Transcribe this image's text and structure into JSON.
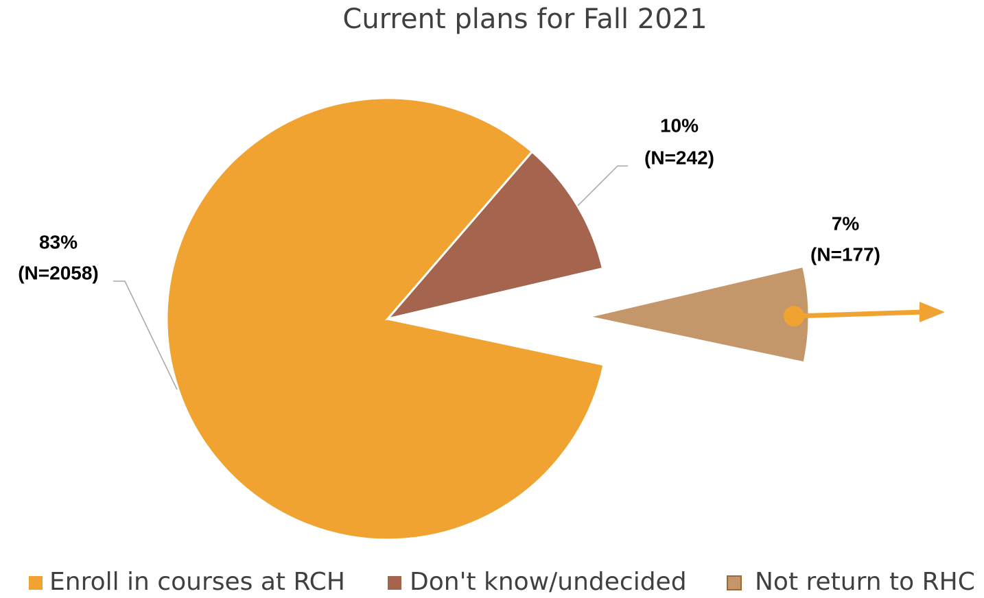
{
  "chart_data": {
    "type": "pie",
    "title": "Current plans for Fall 2021",
    "categories": [
      "Enroll in courses at RCH",
      "Don't know/undecided",
      "Not return to RHC"
    ],
    "values": [
      83,
      10,
      7
    ],
    "value_labels": [
      "83%",
      "10%",
      "7%"
    ],
    "n_labels": [
      "(N=2058)",
      "(N=242)",
      "(N=177)"
    ],
    "colors": [
      "#F0A330",
      "#A5644E",
      "#C4976B"
    ],
    "exploded": [
      false,
      false,
      true
    ],
    "legend": "bottom"
  }
}
